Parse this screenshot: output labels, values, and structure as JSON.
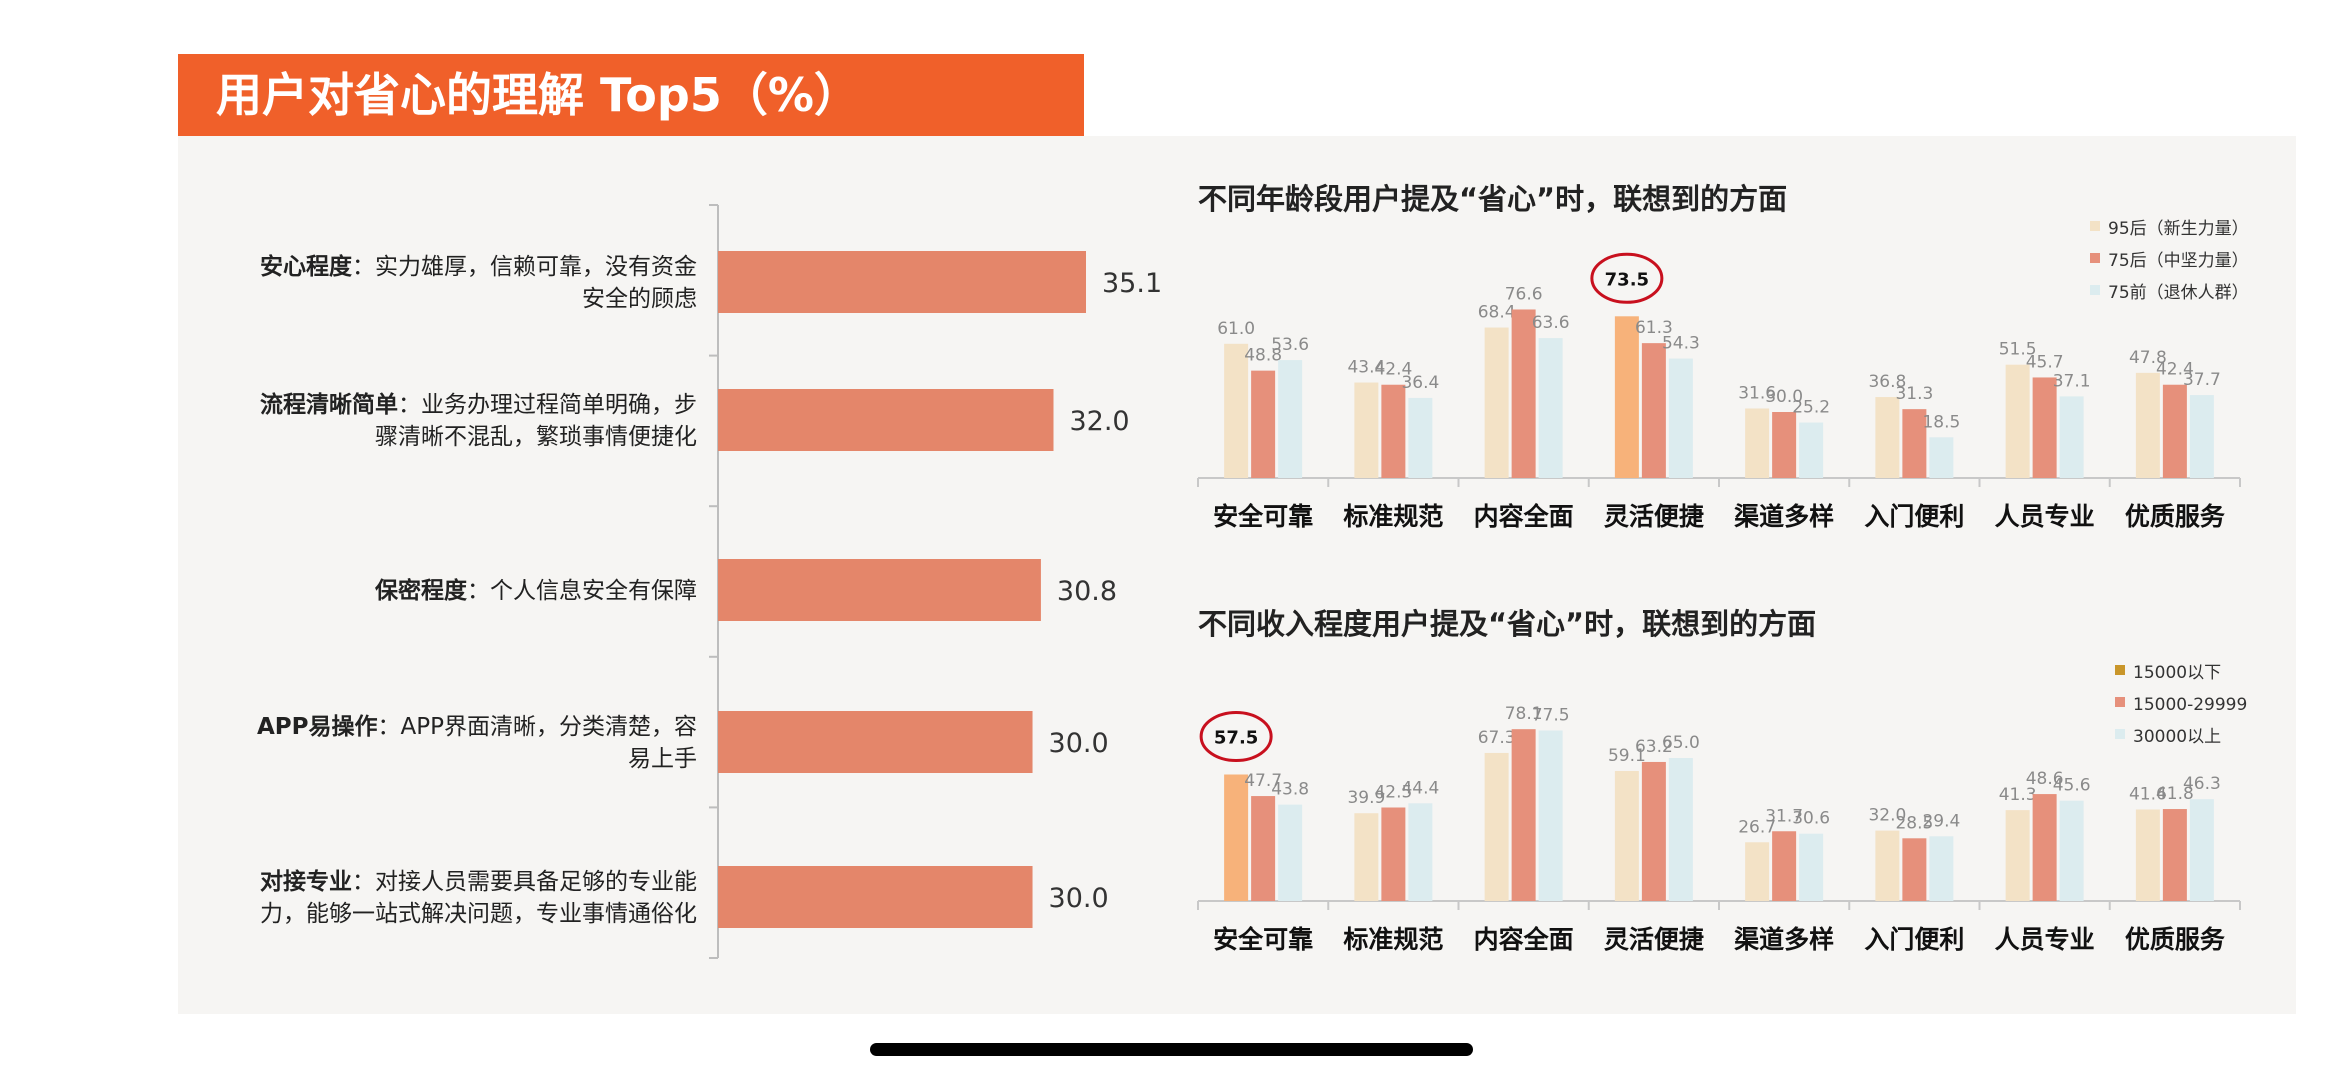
{
  "page_title": "用户对省心的理解 Top5（%）",
  "colors": {
    "accent": "#f0602a",
    "bar_left": "#e4866a",
    "series_a": "#f3e2c6",
    "series_b": "#e6907b",
    "series_c": "#dcecef",
    "highlight": "#f7b27a",
    "circle": "#c8101e"
  },
  "chart_data": [
    {
      "type": "bar",
      "orientation": "horizontal",
      "categories": [
        {
          "bold": "安心程度",
          "desc_lines": [
            "：实力雄厚，信赖可靠，没有资金",
            "安全的顾虑"
          ]
        },
        {
          "bold": "流程清晰简单",
          "desc_lines": [
            "：业务办理过程简单明确，步",
            "骤清晰不混乱，繁琐事情便捷化"
          ]
        },
        {
          "bold": "保密程度",
          "desc_lines": [
            "：个人信息安全有保障"
          ]
        },
        {
          "bold": "APP易操作",
          "desc_lines": [
            "：APP界面清晰，分类清楚，容",
            "易上手"
          ]
        },
        {
          "bold": "对接专业",
          "desc_lines": [
            "：对接人员需要具备足够的专业能",
            "力，能够一站式解决问题，专业事情通俗化"
          ]
        }
      ],
      "values": [
        35.1,
        32.0,
        30.8,
        30.0,
        30.0
      ],
      "value_labels": [
        "35.1",
        "32.0",
        "30.8",
        "30.0",
        "30.0"
      ]
    },
    {
      "type": "bar",
      "title": "不同年龄段用户提及“省心”时，联想到的方面",
      "categories": [
        "安全可靠",
        "标准规范",
        "内容全面",
        "灵活便捷",
        "渠道多样",
        "入门便利",
        "人员专业",
        "优质服务"
      ],
      "series": [
        {
          "name": "95后（新生力量）",
          "values": [
            61.0,
            43.4,
            68.4,
            73.5,
            31.6,
            36.8,
            51.5,
            47.8
          ],
          "labels": [
            "61.0",
            "43.4",
            "68.4",
            "73.5",
            "31.6",
            "36.8",
            "51.5",
            "47.8"
          ]
        },
        {
          "name": "75后（中坚力量）",
          "values": [
            48.8,
            42.4,
            76.6,
            61.3,
            30.0,
            31.3,
            45.7,
            42.4
          ],
          "labels": [
            "48.8",
            "42.4",
            "76.6",
            "61.3",
            "30.0",
            "31.3",
            "45.7",
            "42.4"
          ]
        },
        {
          "name": "75前（退休人群）",
          "values": [
            53.6,
            36.4,
            63.6,
            54.3,
            25.2,
            18.5,
            37.1,
            37.7
          ],
          "labels": [
            "53.6",
            "36.4",
            "63.6",
            "54.3",
            "25.2",
            "18.5",
            "37.1",
            "37.7"
          ]
        }
      ],
      "highlight": {
        "series": 0,
        "category": 3
      },
      "legend": "top-right",
      "ylim": [
        0,
        80
      ]
    },
    {
      "type": "bar",
      "title": "不同收入程度用户提及“省心”时，联想到的方面",
      "categories": [
        "安全可靠",
        "标准规范",
        "内容全面",
        "灵活便捷",
        "渠道多样",
        "入门便利",
        "人员专业",
        "优质服务"
      ],
      "series": [
        {
          "name": "15000以下",
          "values": [
            57.5,
            39.9,
            67.3,
            59.1,
            26.7,
            32.0,
            41.3,
            41.6
          ],
          "labels": [
            "57.5",
            "39.9",
            "67.3",
            "59.1",
            "26.7",
            "32.0",
            "41.3",
            "41.6"
          ]
        },
        {
          "name": "15000-29999",
          "values": [
            47.7,
            42.5,
            78.1,
            63.2,
            31.7,
            28.5,
            48.6,
            41.8
          ],
          "labels": [
            "47.7",
            "42.5",
            "78.1",
            "63.2",
            "31.7",
            "28.5",
            "48.6",
            "41.8"
          ]
        },
        {
          "name": "30000以上",
          "values": [
            43.8,
            44.4,
            77.5,
            65.0,
            30.6,
            29.4,
            45.6,
            46.3
          ],
          "labels": [
            "43.8",
            "44.4",
            "77.5",
            "65.0",
            "30.6",
            "29.4",
            "45.6",
            "46.3"
          ]
        }
      ],
      "highlight": {
        "series": 0,
        "category": 0
      },
      "legend": "top-right",
      "legend_marker_color": "#c9962a",
      "ylim": [
        0,
        80
      ]
    }
  ]
}
